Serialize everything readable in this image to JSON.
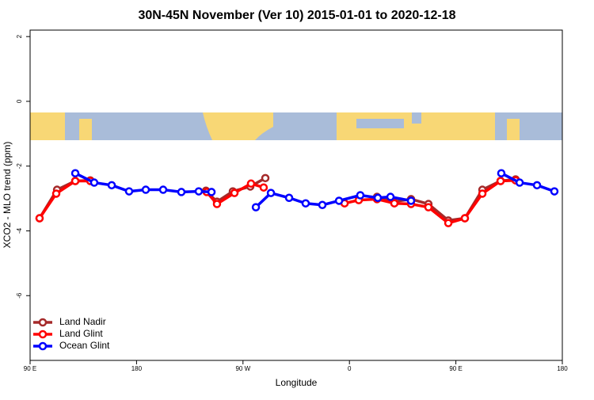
{
  "chart_data": {
    "type": "line",
    "title": "30N-45N November (Ver 10)   2015-01-01 to 2020-12-18",
    "x_label": "Longitude",
    "y_label": "XCO2 - MLO trend (ppm)",
    "xlim": [
      90,
      540
    ],
    "ylim": [
      -8,
      2.2
    ],
    "xticks": [
      {
        "value": 90,
        "label": "90 E"
      },
      180,
      {
        "value": 270,
        "label": "90 W"
      },
      {
        "value": 360,
        "label": "0"
      },
      {
        "value": 450,
        "label": "90 E"
      },
      {
        "value": 540,
        "label": "180"
      }
    ],
    "yticks": [
      -6,
      -4,
      -2,
      0,
      2
    ],
    "legend": "bottom-left",
    "series": [
      {
        "name": "Land Nadir",
        "color": "#a52a2a",
        "x": [
          98.0,
          112.8,
          128.2,
          140.9,
          null,
          238.7,
          248.0,
          261.4,
          276.2,
          288.9,
          null,
          383.3,
          397.4,
          412.1,
          426.8,
          443.6,
          457.6,
          472.4,
          487.8,
          500.5
        ],
        "values": [
          -3.61,
          -2.73,
          -2.46,
          -2.44,
          null,
          -2.76,
          -3.1,
          -2.78,
          -2.63,
          -2.37,
          null,
          -2.95,
          -3.1,
          -3.02,
          -3.17,
          -3.68,
          -3.61,
          -2.73,
          -2.46,
          -2.41
        ]
      },
      {
        "name": "Land Glint",
        "color": "#ff0000",
        "x": [
          98.0,
          112.1,
          128.2,
          140.9,
          null,
          239.3,
          248.0,
          262.8,
          276.8,
          287.5,
          null,
          355.9,
          367.9,
          383.3,
          398.0,
          412.1,
          426.8,
          443.6,
          457.6,
          472.4,
          487.8,
          500.5
        ],
        "values": [
          -3.61,
          -2.85,
          -2.46,
          -2.46,
          null,
          -2.8,
          -3.17,
          -2.83,
          -2.54,
          -2.66,
          null,
          -3.15,
          -3.05,
          -3.02,
          -3.15,
          -3.17,
          -3.27,
          -3.76,
          -3.61,
          -2.85,
          -2.46,
          -2.44
        ]
      },
      {
        "name": "Ocean Glint",
        "color": "#0000ff",
        "x": [
          128.2,
          144.2,
          159.0,
          173.7,
          187.8,
          202.5,
          217.9,
          232.6,
          243.4,
          null,
          280.9,
          293.6,
          309.0,
          323.0,
          337.1,
          351.2,
          369.2,
          384.0,
          394.7,
          412.1,
          null,
          488.4,
          503.9,
          518.6,
          533.3
        ],
        "values": [
          -2.22,
          -2.51,
          -2.59,
          -2.78,
          -2.73,
          -2.73,
          -2.8,
          -2.78,
          -2.8,
          null,
          -3.27,
          -2.83,
          -2.98,
          -3.15,
          -3.2,
          -3.07,
          -2.9,
          -2.98,
          -2.95,
          -3.07,
          null,
          -2.22,
          -2.51,
          -2.59,
          -2.78
        ]
      }
    ]
  }
}
